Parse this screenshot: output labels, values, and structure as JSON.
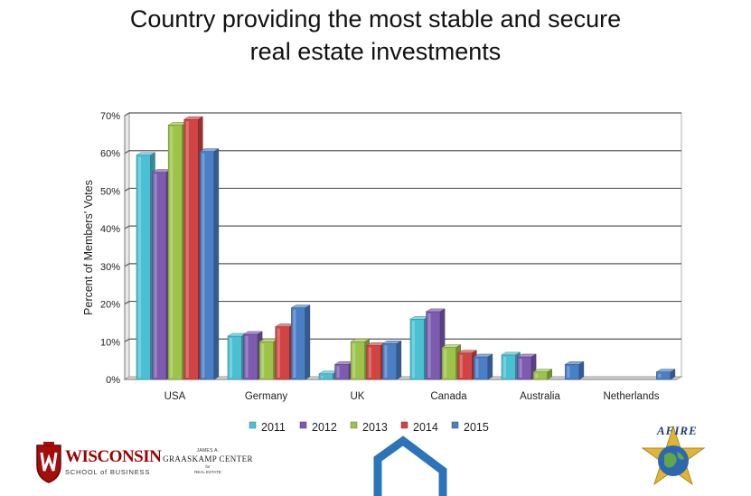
{
  "title_line1": "Country providing the most stable and secure",
  "title_line2": "real estate investments",
  "chart_data": {
    "type": "bar",
    "style": "3d-clustered",
    "title": "Country providing the most stable and secure real estate investments",
    "ylabel": "Percent of Members' Votes",
    "xlabel": "",
    "ylim": [
      0,
      70
    ],
    "yticks": [
      "0%",
      "10%",
      "20%",
      "30%",
      "40%",
      "50%",
      "60%",
      "70%"
    ],
    "grid": true,
    "legend": "bottom",
    "categories": [
      "USA",
      "Germany",
      "UK",
      "Canada",
      "Australia",
      "Netherlands"
    ],
    "series": [
      {
        "name": "2011",
        "color": "#4bc0d3",
        "values": [
          59.5,
          11.5,
          1.5,
          16,
          6.5,
          0
        ]
      },
      {
        "name": "2012",
        "color": "#7d5cb0",
        "values": [
          55,
          12,
          4,
          18,
          6,
          0
        ]
      },
      {
        "name": "2013",
        "color": "#9dc34a",
        "values": [
          67.5,
          10,
          10,
          8.5,
          2,
          0
        ]
      },
      {
        "name": "2014",
        "color": "#d04544",
        "values": [
          69,
          14,
          9,
          7,
          0,
          0
        ]
      },
      {
        "name": "2015",
        "color": "#4a7ec5",
        "values": [
          60.5,
          19,
          9.5,
          6,
          4,
          2
        ]
      }
    ]
  },
  "logos": {
    "wisconsin": {
      "name": "WISCONSIN",
      "sub": "SCHOOL of BUSINESS"
    },
    "graaskamp": {
      "top": "JAMES A.",
      "mid": "GRAASKAMP CENTER",
      "for": "for",
      "bot": "REAL ESTATE"
    },
    "afire": {
      "name": "AFIRE"
    }
  },
  "colors": {
    "house_outline": "#2b74bb",
    "gridline": "#595959",
    "wall": "#ffffff"
  }
}
